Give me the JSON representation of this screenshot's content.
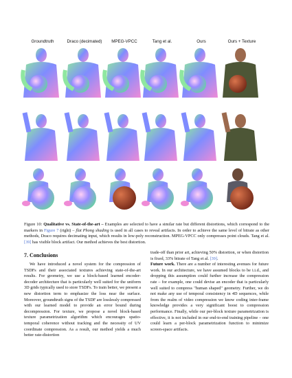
{
  "figure": {
    "columns": [
      "Groundtruth",
      "Draco (decimated)",
      "MPEG-VPCC",
      "Tang et al.",
      "Ours",
      "Ours + Texture"
    ],
    "colors": {
      "normal_blue": "#7f8cff",
      "normal_pink": "#f08bd6",
      "normal_green": "#8fe7a0",
      "skin": "#9c6a4e",
      "shirt": "#4d5636",
      "ball": "#9b3f24"
    }
  },
  "caption": {
    "label": "Figure 10:",
    "title": "Qualitative vs. State-of-the-art –",
    "text1": " Examples are selected to have a similar rate but different distortions, which correspond to the markers in ",
    "ref1": "Figure 7",
    "text2": " (right) – ",
    "flat": "flat Phong shading",
    "text3": " is used in all cases to reveal artifacts. In order to achieve the same level of bitrate as other methods, Draco requires decimating input, which results in low-poly reconstruction. MPEG-VPCC only compresses point clouds. Tang et al. ",
    "ref2": "[39]",
    "text4": " has visible block artifact. Our method achieves the best distortion."
  },
  "section": {
    "title": "7. Conclusions",
    "left_para": "We have introduced a novel system for the compression of TSDFs and their associated textures achieving state-of-the-art results. For geometry, we use a block-based learned encoder-decoder architecture that is particularly well suited for the uniform 3D grids typically used to store TSDFs. To train better, we present a new distortion term to emphasize the loss near the surface. Moreover, groundtruth signs of the TSDF are losslessly compressed with our learned model to provide an error bound during decompression. For texture, we propose a novel block-based texture parametrization algorithm which encourages spatio-temporal coherence without tracking and the necessity of UV coordinate compression. As a result, our method yields a much better rate-distortion",
    "right_para1": "trade-off than prior art, achieving 50% distortion, or when distortion is fixed, 33% bitrate of Tang et al. ",
    "right_ref": "[39]",
    "right_para1_end": ".",
    "future_heading": "Future work.",
    "right_para2": " There are a number of interesting avenues for future work. In our architecture, we have assumed blocks to be i.i.d., and dropping this assumption could further increase the compression rate – for example, one could devise an encoder that is particularly well suited to compress \"human shaped\" geometry. Further, we do not make any use of temporal consistency in 4D sequences, while from the realm of video compression we know coding inter-frame knowledge provides a very significant boost to compression performance. Finally, while our per-block texture parametrization is effective, it is not included in our end-to-end training pipeline – one could learn a per-block parametrization function to minimize screen-space artifacts."
  }
}
